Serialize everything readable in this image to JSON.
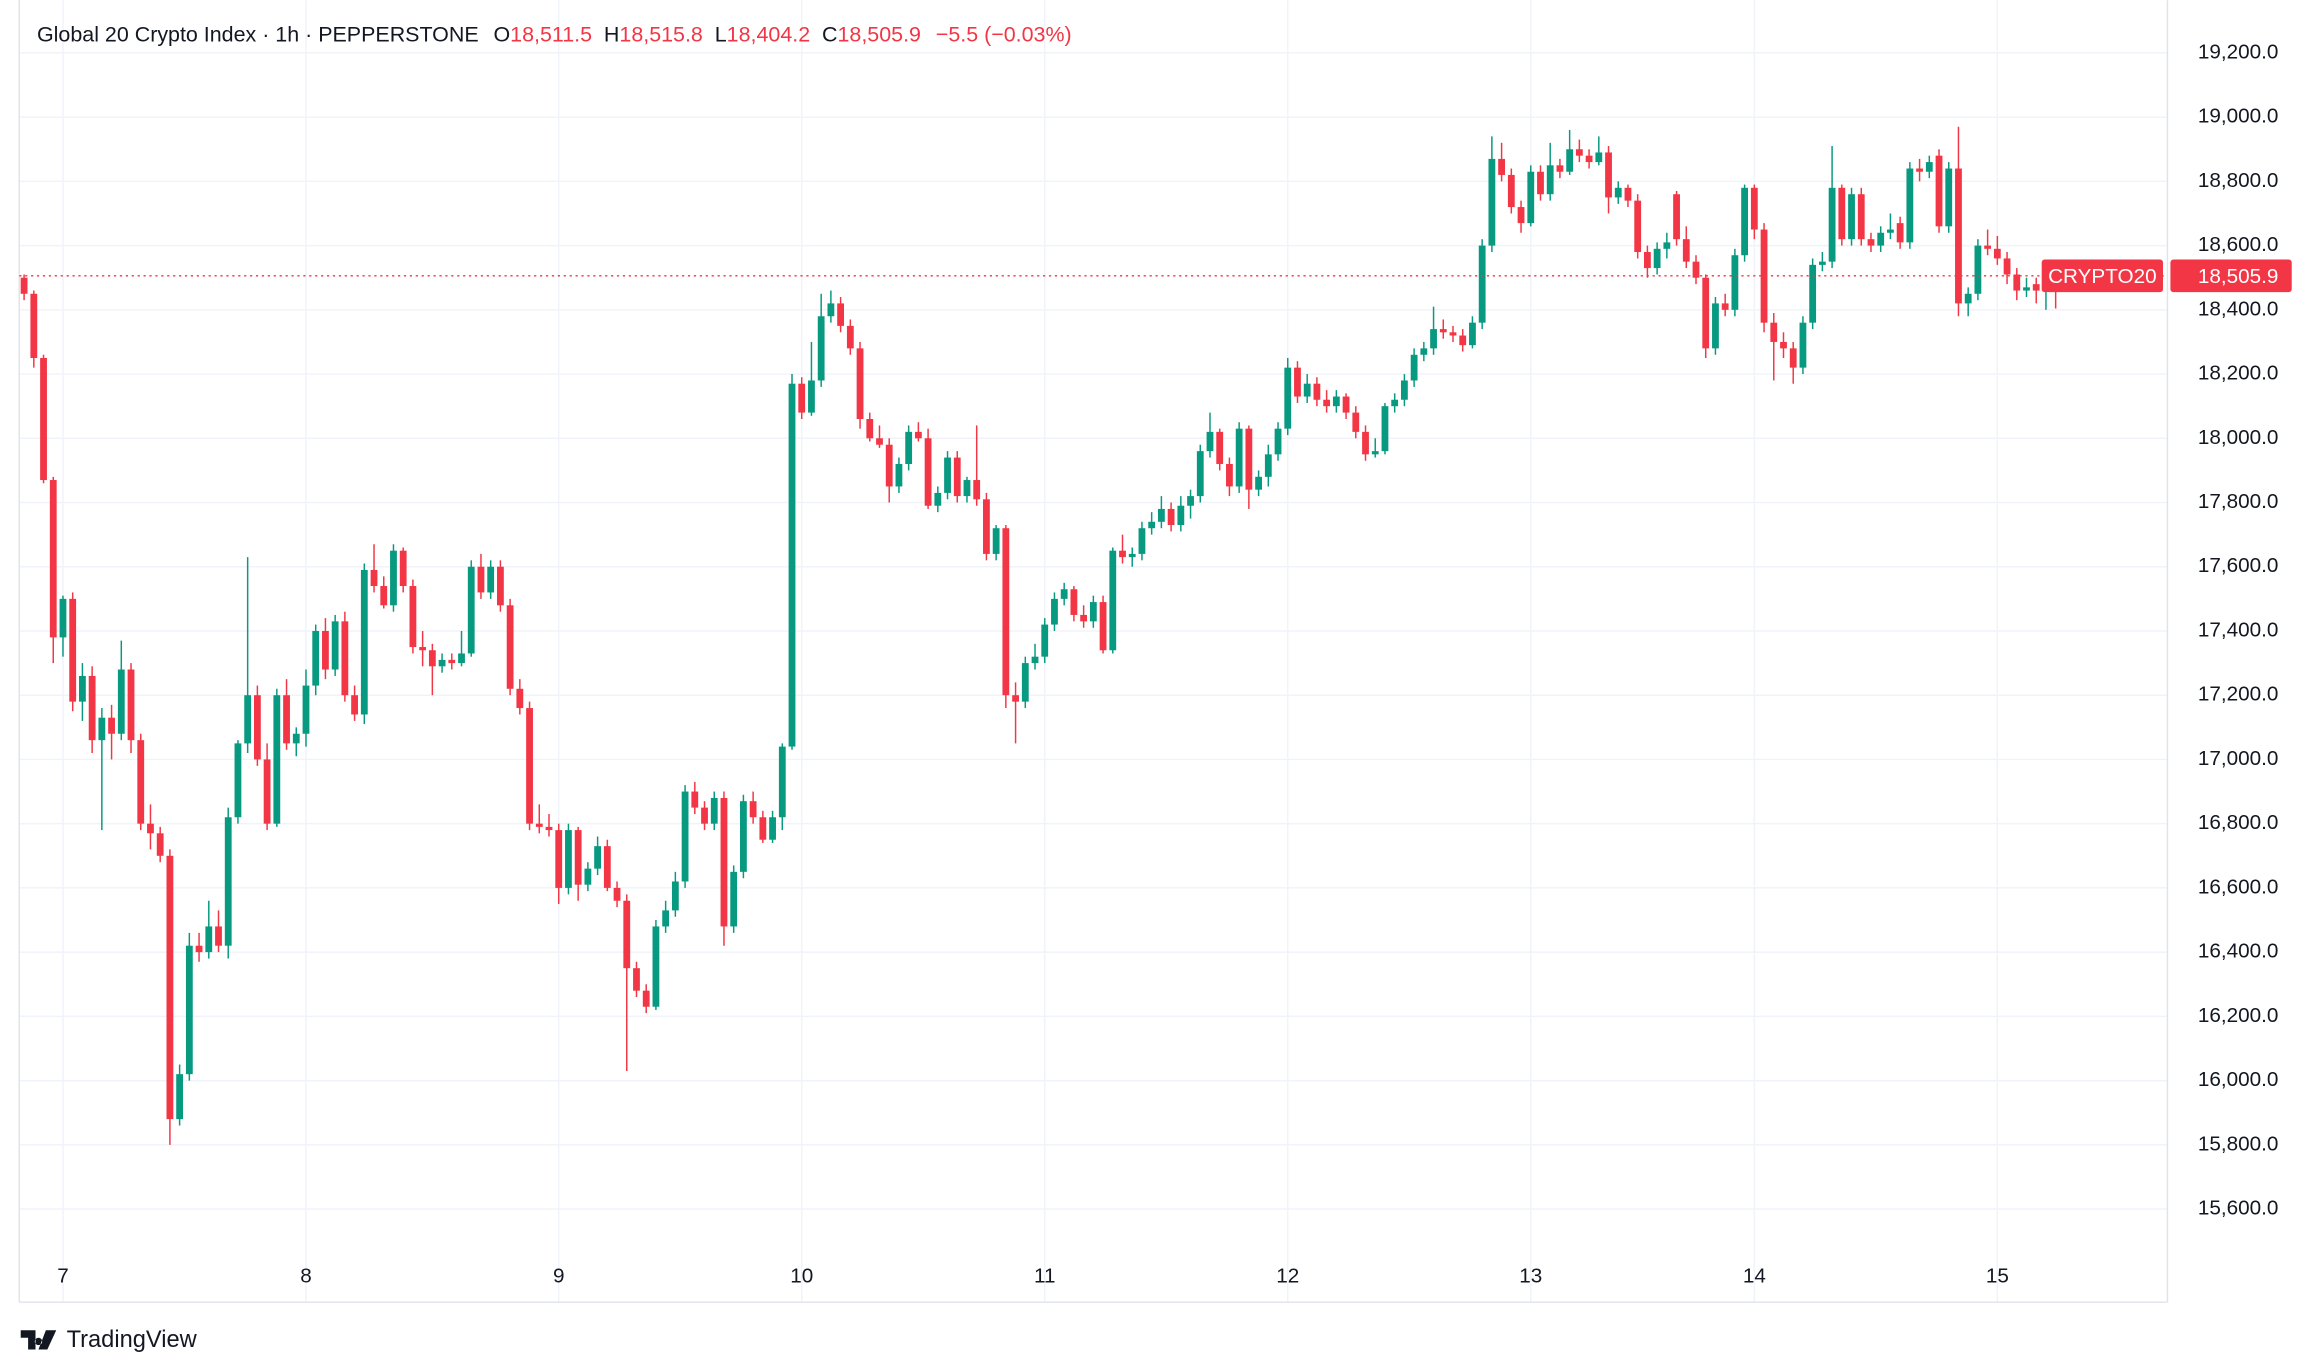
{
  "header": {
    "title": "Global 20 Crypto Index · 1h · PEPPERSTONE",
    "ohlc": [
      {
        "key": "O",
        "value": "18,511.5"
      },
      {
        "key": "H",
        "value": "18,515.8"
      },
      {
        "key": "L",
        "value": "18,404.2"
      },
      {
        "key": "C",
        "value": "18,505.9"
      }
    ],
    "change": "−5.5 (−0.03%)"
  },
  "brand": "TradingView",
  "chart_data": {
    "type": "candlestick",
    "symbol": "CRYPTO20",
    "last_price": {
      "value": 18505.9,
      "label": "18,505.9"
    },
    "up_color": "#089981",
    "down_color": "#f23645",
    "grid": true,
    "xlim": [
      -0.5,
      220.5
    ],
    "xticks": [
      {
        "value": 4,
        "label": "7"
      },
      {
        "value": 29,
        "label": "8"
      },
      {
        "value": 55,
        "label": "9"
      },
      {
        "value": 80,
        "label": "10"
      },
      {
        "value": 105,
        "label": "11"
      },
      {
        "value": 130,
        "label": "12"
      },
      {
        "value": 155,
        "label": "13"
      },
      {
        "value": 178,
        "label": "14"
      },
      {
        "value": 203,
        "label": "15"
      }
    ],
    "ylim": [
      15310,
      19364
    ],
    "yticks": [
      {
        "value": 15600,
        "label": "15,600.0"
      },
      {
        "value": 15800,
        "label": "15,800.0"
      },
      {
        "value": 16000,
        "label": "16,000.0"
      },
      {
        "value": 16200,
        "label": "16,200.0"
      },
      {
        "value": 16400,
        "label": "16,400.0"
      },
      {
        "value": 16600,
        "label": "16,600.0"
      },
      {
        "value": 16800,
        "label": "16,800.0"
      },
      {
        "value": 17000,
        "label": "17,000.0"
      },
      {
        "value": 17200,
        "label": "17,200.0"
      },
      {
        "value": 17400,
        "label": "17,400.0"
      },
      {
        "value": 17600,
        "label": "17,600.0"
      },
      {
        "value": 17800,
        "label": "17,800.0"
      },
      {
        "value": 18000,
        "label": "18,000.0"
      },
      {
        "value": 18200,
        "label": "18,200.0"
      },
      {
        "value": 18400,
        "label": "18,400.0"
      },
      {
        "value": 18600,
        "label": "18,600.0"
      },
      {
        "value": 18800,
        "label": "18,800.0"
      },
      {
        "value": 19000,
        "label": "19,000.0"
      },
      {
        "value": 19200,
        "label": "19,200.0"
      }
    ],
    "candles": [
      [
        18500,
        18510,
        18430,
        18450
      ],
      [
        18450,
        18460,
        18220,
        18250
      ],
      [
        18250,
        18260,
        17860,
        17870
      ],
      [
        17870,
        17880,
        17300,
        17380
      ],
      [
        17380,
        17510,
        17320,
        17500
      ],
      [
        17500,
        17520,
        17150,
        17180
      ],
      [
        17180,
        17300,
        17120,
        17260
      ],
      [
        17260,
        17290,
        17020,
        17060
      ],
      [
        17060,
        17160,
        16780,
        17130
      ],
      [
        17130,
        17170,
        17000,
        17080
      ],
      [
        17080,
        17370,
        17060,
        17280
      ],
      [
        17280,
        17300,
        17020,
        17060
      ],
      [
        17060,
        17080,
        16780,
        16800
      ],
      [
        16800,
        16860,
        16720,
        16770
      ],
      [
        16770,
        16790,
        16680,
        16700
      ],
      [
        16700,
        16720,
        15800,
        15880
      ],
      [
        15880,
        16050,
        15860,
        16020
      ],
      [
        16020,
        16460,
        16000,
        16420
      ],
      [
        16420,
        16460,
        16370,
        16400
      ],
      [
        16400,
        16560,
        16380,
        16480
      ],
      [
        16480,
        16530,
        16400,
        16420
      ],
      [
        16420,
        16850,
        16380,
        16820
      ],
      [
        16820,
        17060,
        16800,
        17050
      ],
      [
        17050,
        17630,
        17020,
        17200
      ],
      [
        17200,
        17230,
        16980,
        17000
      ],
      [
        17000,
        17050,
        16780,
        16800
      ],
      [
        16800,
        17220,
        16790,
        17200
      ],
      [
        17200,
        17250,
        17030,
        17050
      ],
      [
        17050,
        17100,
        17010,
        17080
      ],
      [
        17080,
        17280,
        17040,
        17230
      ],
      [
        17230,
        17420,
        17200,
        17400
      ],
      [
        17400,
        17440,
        17250,
        17280
      ],
      [
        17280,
        17450,
        17260,
        17430
      ],
      [
        17430,
        17460,
        17180,
        17200
      ],
      [
        17200,
        17230,
        17120,
        17140
      ],
      [
        17140,
        17610,
        17110,
        17590
      ],
      [
        17590,
        17670,
        17520,
        17540
      ],
      [
        17540,
        17570,
        17470,
        17480
      ],
      [
        17480,
        17670,
        17460,
        17650
      ],
      [
        17650,
        17660,
        17520,
        17540
      ],
      [
        17540,
        17560,
        17330,
        17350
      ],
      [
        17350,
        17400,
        17290,
        17340
      ],
      [
        17340,
        17360,
        17200,
        17290
      ],
      [
        17290,
        17330,
        17270,
        17310
      ],
      [
        17310,
        17330,
        17280,
        17300
      ],
      [
        17300,
        17400,
        17290,
        17330
      ],
      [
        17330,
        17620,
        17320,
        17600
      ],
      [
        17600,
        17640,
        17500,
        17520
      ],
      [
        17520,
        17620,
        17500,
        17600
      ],
      [
        17600,
        17620,
        17460,
        17480
      ],
      [
        17480,
        17500,
        17200,
        17220
      ],
      [
        17220,
        17250,
        17140,
        17160
      ],
      [
        17160,
        17180,
        16780,
        16800
      ],
      [
        16800,
        16860,
        16770,
        16790
      ],
      [
        16790,
        16830,
        16760,
        16780
      ],
      [
        16780,
        16800,
        16550,
        16600
      ],
      [
        16600,
        16800,
        16580,
        16780
      ],
      [
        16780,
        16790,
        16560,
        16610
      ],
      [
        16610,
        16680,
        16590,
        16660
      ],
      [
        16660,
        16760,
        16640,
        16730
      ],
      [
        16730,
        16750,
        16590,
        16600
      ],
      [
        16600,
        16620,
        16540,
        16560
      ],
      [
        16560,
        16580,
        16030,
        16350
      ],
      [
        16350,
        16370,
        16260,
        16280
      ],
      [
        16280,
        16300,
        16210,
        16230
      ],
      [
        16230,
        16500,
        16220,
        16480
      ],
      [
        16480,
        16560,
        16460,
        16530
      ],
      [
        16530,
        16650,
        16510,
        16620
      ],
      [
        16620,
        16920,
        16600,
        16900
      ],
      [
        16900,
        16930,
        16830,
        16850
      ],
      [
        16850,
        16870,
        16780,
        16800
      ],
      [
        16800,
        16900,
        16780,
        16880
      ],
      [
        16880,
        16900,
        16420,
        16480
      ],
      [
        16480,
        16670,
        16460,
        16650
      ],
      [
        16650,
        16890,
        16630,
        16870
      ],
      [
        16870,
        16900,
        16800,
        16820
      ],
      [
        16820,
        16840,
        16740,
        16750
      ],
      [
        16750,
        16840,
        16740,
        16820
      ],
      [
        16820,
        17050,
        16780,
        17040
      ],
      [
        17040,
        18200,
        17030,
        18170
      ],
      [
        18170,
        18190,
        18060,
        18080
      ],
      [
        18080,
        18300,
        18070,
        18180
      ],
      [
        18180,
        18450,
        18160,
        18380
      ],
      [
        18380,
        18460,
        18360,
        18420
      ],
      [
        18420,
        18440,
        18330,
        18350
      ],
      [
        18350,
        18370,
        18260,
        18280
      ],
      [
        18280,
        18300,
        18030,
        18060
      ],
      [
        18060,
        18080,
        17990,
        18000
      ],
      [
        18000,
        18040,
        17970,
        17980
      ],
      [
        17980,
        18000,
        17800,
        17850
      ],
      [
        17850,
        17940,
        17830,
        17920
      ],
      [
        17920,
        18040,
        17900,
        18020
      ],
      [
        18020,
        18050,
        17990,
        18000
      ],
      [
        18000,
        18030,
        17780,
        17790
      ],
      [
        17790,
        17850,
        17770,
        17830
      ],
      [
        17830,
        17960,
        17810,
        17940
      ],
      [
        17940,
        17960,
        17800,
        17820
      ],
      [
        17820,
        17880,
        17800,
        17870
      ],
      [
        17870,
        18040,
        17790,
        17810
      ],
      [
        17810,
        17830,
        17620,
        17640
      ],
      [
        17640,
        17730,
        17620,
        17720
      ],
      [
        17720,
        17730,
        17160,
        17200
      ],
      [
        17200,
        17240,
        17050,
        17180
      ],
      [
        17180,
        17320,
        17160,
        17300
      ],
      [
        17300,
        17360,
        17280,
        17320
      ],
      [
        17320,
        17440,
        17300,
        17420
      ],
      [
        17420,
        17520,
        17400,
        17500
      ],
      [
        17500,
        17550,
        17480,
        17530
      ],
      [
        17530,
        17540,
        17430,
        17450
      ],
      [
        17450,
        17480,
        17410,
        17430
      ],
      [
        17430,
        17510,
        17410,
        17490
      ],
      [
        17490,
        17510,
        17330,
        17340
      ],
      [
        17340,
        17660,
        17330,
        17650
      ],
      [
        17650,
        17700,
        17610,
        17630
      ],
      [
        17630,
        17660,
        17600,
        17640
      ],
      [
        17640,
        17740,
        17620,
        17720
      ],
      [
        17720,
        17770,
        17700,
        17740
      ],
      [
        17740,
        17820,
        17720,
        17780
      ],
      [
        17780,
        17800,
        17710,
        17730
      ],
      [
        17730,
        17820,
        17710,
        17790
      ],
      [
        17790,
        17840,
        17750,
        17820
      ],
      [
        17820,
        17980,
        17800,
        17960
      ],
      [
        17960,
        18080,
        17940,
        18020
      ],
      [
        18020,
        18030,
        17900,
        17920
      ],
      [
        17920,
        17940,
        17820,
        17850
      ],
      [
        17850,
        18050,
        17830,
        18030
      ],
      [
        18030,
        18040,
        17780,
        17840
      ],
      [
        17840,
        17900,
        17820,
        17880
      ],
      [
        17880,
        17980,
        17850,
        17950
      ],
      [
        17950,
        18050,
        17930,
        18030
      ],
      [
        18030,
        18250,
        18010,
        18220
      ],
      [
        18220,
        18240,
        18110,
        18130
      ],
      [
        18130,
        18200,
        18110,
        18170
      ],
      [
        18170,
        18190,
        18100,
        18120
      ],
      [
        18120,
        18150,
        18080,
        18100
      ],
      [
        18100,
        18150,
        18080,
        18130
      ],
      [
        18130,
        18140,
        18060,
        18080
      ],
      [
        18080,
        18100,
        18000,
        18020
      ],
      [
        18020,
        18040,
        17930,
        17950
      ],
      [
        17950,
        18000,
        17940,
        17960
      ],
      [
        17960,
        18110,
        17950,
        18100
      ],
      [
        18100,
        18140,
        18080,
        18120
      ],
      [
        18120,
        18200,
        18100,
        18180
      ],
      [
        18180,
        18280,
        18160,
        18260
      ],
      [
        18260,
        18300,
        18240,
        18280
      ],
      [
        18280,
        18410,
        18260,
        18340
      ],
      [
        18340,
        18370,
        18310,
        18330
      ],
      [
        18330,
        18350,
        18300,
        18320
      ],
      [
        18320,
        18340,
        18270,
        18290
      ],
      [
        18290,
        18380,
        18280,
        18360
      ],
      [
        18360,
        18620,
        18340,
        18600
      ],
      [
        18600,
        18940,
        18580,
        18870
      ],
      [
        18870,
        18920,
        18800,
        18820
      ],
      [
        18820,
        18840,
        18700,
        18720
      ],
      [
        18720,
        18740,
        18640,
        18670
      ],
      [
        18670,
        18850,
        18660,
        18830
      ],
      [
        18830,
        18850,
        18740,
        18760
      ],
      [
        18760,
        18920,
        18740,
        18850
      ],
      [
        18850,
        18870,
        18810,
        18830
      ],
      [
        18830,
        18960,
        18820,
        18900
      ],
      [
        18900,
        18930,
        18860,
        18880
      ],
      [
        18880,
        18900,
        18840,
        18860
      ],
      [
        18860,
        18940,
        18850,
        18890
      ],
      [
        18890,
        18910,
        18700,
        18750
      ],
      [
        18750,
        18800,
        18730,
        18780
      ],
      [
        18780,
        18790,
        18720,
        18740
      ],
      [
        18740,
        18760,
        18560,
        18580
      ],
      [
        18580,
        18600,
        18500,
        18530
      ],
      [
        18530,
        18610,
        18510,
        18590
      ],
      [
        18590,
        18640,
        18560,
        18610
      ],
      [
        18760,
        18770,
        18600,
        18620
      ],
      [
        18620,
        18660,
        18530,
        18550
      ],
      [
        18550,
        18570,
        18480,
        18500
      ],
      [
        18500,
        18510,
        18250,
        18280
      ],
      [
        18280,
        18440,
        18260,
        18420
      ],
      [
        18420,
        18450,
        18380,
        18400
      ],
      [
        18400,
        18590,
        18380,
        18570
      ],
      [
        18570,
        18790,
        18550,
        18780
      ],
      [
        18780,
        18790,
        18620,
        18650
      ],
      [
        18650,
        18670,
        18330,
        18360
      ],
      [
        18360,
        18390,
        18180,
        18300
      ],
      [
        18300,
        18330,
        18250,
        18280
      ],
      [
        18280,
        18300,
        18170,
        18220
      ],
      [
        18220,
        18380,
        18200,
        18360
      ],
      [
        18360,
        18560,
        18340,
        18540
      ],
      [
        18540,
        18580,
        18520,
        18550
      ],
      [
        18550,
        18910,
        18530,
        18780
      ],
      [
        18780,
        18790,
        18600,
        18620
      ],
      [
        18620,
        18780,
        18600,
        18760
      ],
      [
        18760,
        18780,
        18600,
        18620
      ],
      [
        18620,
        18640,
        18580,
        18600
      ],
      [
        18600,
        18660,
        18580,
        18640
      ],
      [
        18640,
        18700,
        18620,
        18650
      ],
      [
        18670,
        18690,
        18590,
        18610
      ],
      [
        18610,
        18860,
        18590,
        18840
      ],
      [
        18840,
        18870,
        18800,
        18830
      ],
      [
        18830,
        18880,
        18810,
        18860
      ],
      [
        18880,
        18900,
        18640,
        18660
      ],
      [
        18660,
        18860,
        18640,
        18840
      ],
      [
        18840,
        18970,
        18380,
        18420
      ],
      [
        18420,
        18470,
        18380,
        18450
      ],
      [
        18450,
        18620,
        18430,
        18600
      ],
      [
        18600,
        18650,
        18570,
        18590
      ],
      [
        18590,
        18630,
        18540,
        18560
      ],
      [
        18560,
        18580,
        18480,
        18510
      ],
      [
        18510,
        18530,
        18430,
        18460
      ],
      [
        18460,
        18500,
        18440,
        18470
      ],
      [
        18480,
        18500,
        18420,
        18460
      ],
      [
        18460,
        18510,
        18400,
        18500
      ],
      [
        18511.5,
        18515.8,
        18404.2,
        18505.9
      ]
    ]
  }
}
